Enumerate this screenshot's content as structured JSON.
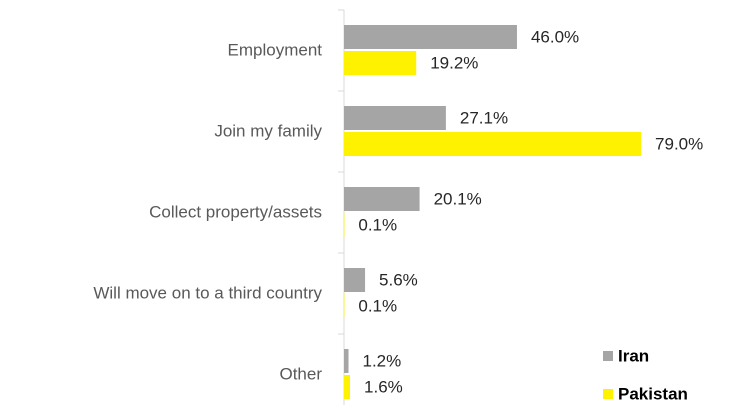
{
  "chart_data": {
    "type": "bar",
    "orientation": "horizontal",
    "categories": [
      "Employment",
      "Join my family",
      "Collect property/assets",
      "Will move on to a third country",
      "Other"
    ],
    "series": [
      {
        "name": "Iran",
        "color": "#a5a5a5",
        "values": [
          46.0,
          27.1,
          20.1,
          5.6,
          1.2
        ],
        "value_labels": [
          "46.0%",
          "27.1%",
          "20.1%",
          "5.6%",
          "1.2%"
        ]
      },
      {
        "name": "Pakistan",
        "color": "#fff200",
        "values": [
          19.2,
          79.0,
          0.1,
          0.1,
          1.6
        ],
        "value_labels": [
          "19.2%",
          "79.0%",
          "0.1%",
          "0.1%",
          "1.6%"
        ]
      }
    ],
    "xlim": [
      0,
      100
    ],
    "grid": false,
    "legend": "lower right"
  }
}
